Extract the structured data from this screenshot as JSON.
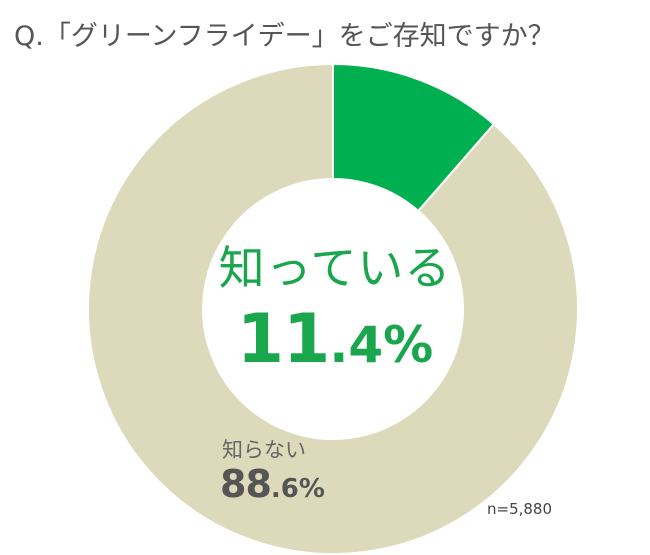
{
  "title": "Q.「グリーンフライデー」をご存知ですか？",
  "sample_size": "n=5,880",
  "colors": {
    "known": "#00b050",
    "unknown": "#dcdabb",
    "separator": "#ffffff"
  },
  "labels": {
    "known": {
      "name": "知っている",
      "value_int": "11",
      "value_dec": ".4%"
    },
    "unknown": {
      "name": "知らない",
      "value_int": "88",
      "value_dec": ".6%"
    }
  },
  "chart_data": {
    "type": "pie",
    "title": "Q.「グリーンフライデー」をご存知ですか？",
    "categories": [
      "知っている",
      "知らない"
    ],
    "values": [
      11.4,
      88.6
    ],
    "unit": "%",
    "note": "n=5,880"
  }
}
